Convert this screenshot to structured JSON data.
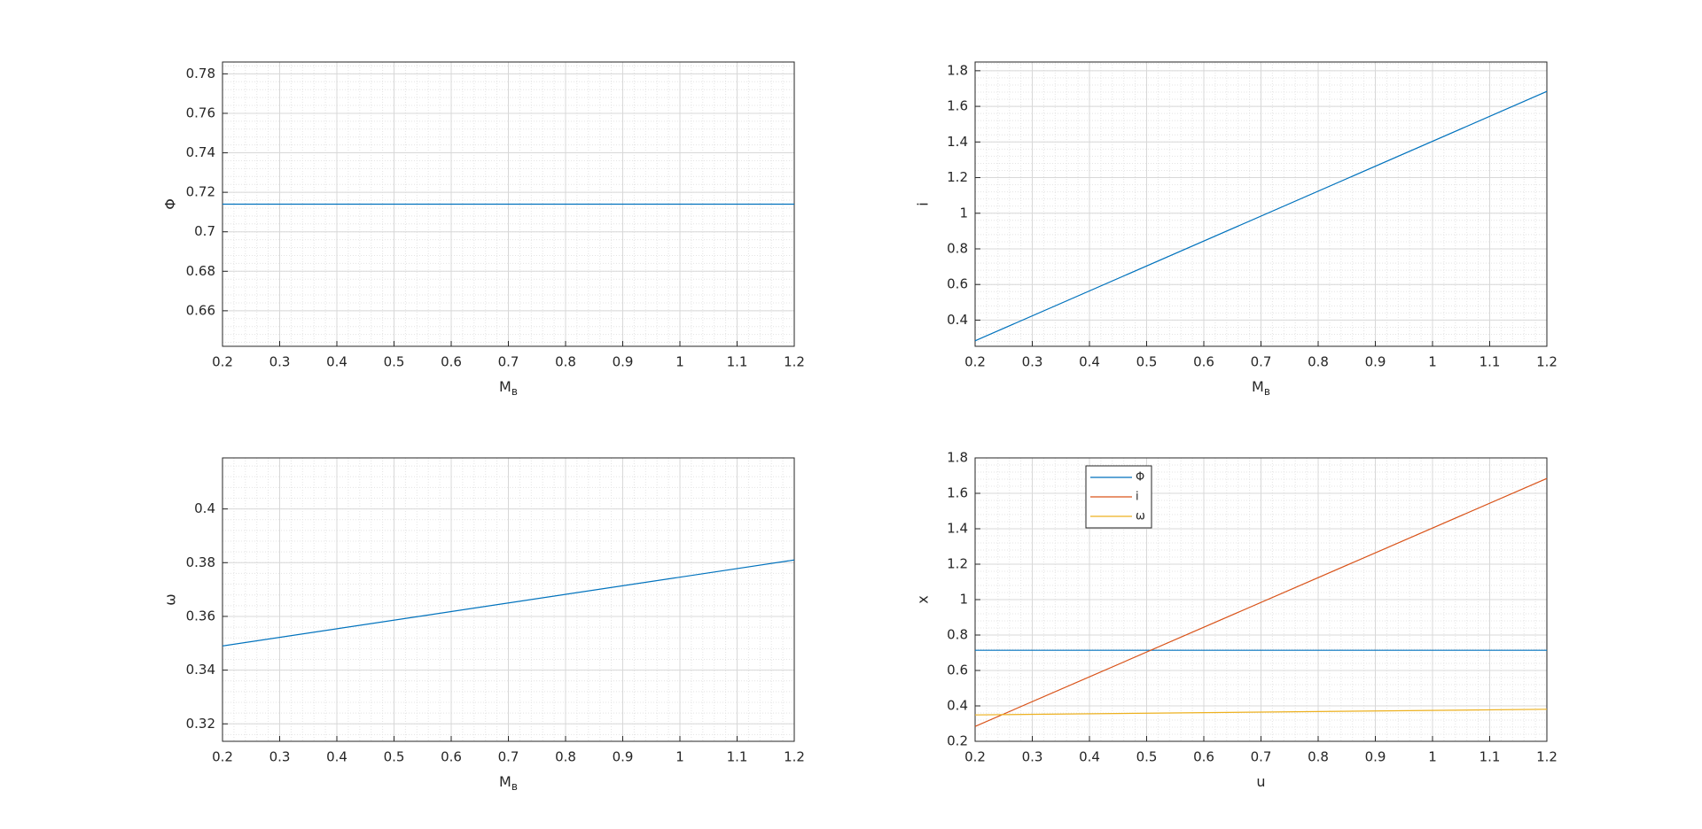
{
  "chart_data": [
    {
      "type": "line",
      "ylabel": "Φ",
      "xlabel": "M",
      "xlabel_subscript": "в",
      "x": [
        0.2,
        1.2
      ],
      "series": [
        {
          "name": "Φ",
          "color": "#0072bd",
          "values": [
            0.714,
            0.714
          ]
        }
      ],
      "xlim": [
        0.2,
        1.2
      ],
      "xticks": [
        0.2,
        0.3,
        0.4,
        0.5,
        0.6,
        0.7,
        0.8,
        0.9,
        1,
        1.1,
        1.2
      ],
      "ylim": [
        0.642,
        0.786
      ],
      "yticks": [
        0.66,
        0.68,
        0.7,
        0.72,
        0.74,
        0.76,
        0.78
      ],
      "grid": true,
      "minor_grid": true
    },
    {
      "type": "line",
      "ylabel": "i",
      "xlabel": "M",
      "xlabel_subscript": "в",
      "x": [
        0.2,
        1.2
      ],
      "series": [
        {
          "name": "i",
          "color": "#0072bd",
          "values": [
            0.284,
            1.684
          ]
        }
      ],
      "xlim": [
        0.2,
        1.2
      ],
      "xticks": [
        0.2,
        0.3,
        0.4,
        0.5,
        0.6,
        0.7,
        0.8,
        0.9,
        1,
        1.1,
        1.2
      ],
      "ylim": [
        0.253,
        1.849
      ],
      "yticks": [
        0.4,
        0.6,
        0.8,
        1,
        1.2,
        1.4,
        1.6,
        1.8
      ],
      "grid": true,
      "minor_grid": true
    },
    {
      "type": "line",
      "ylabel": "ω",
      "xlabel": "M",
      "xlabel_subscript": "в",
      "x": [
        0.2,
        1.2
      ],
      "series": [
        {
          "name": "ω",
          "color": "#0072bd",
          "values": [
            0.349,
            0.381
          ]
        }
      ],
      "xlim": [
        0.2,
        1.2
      ],
      "xticks": [
        0.2,
        0.3,
        0.4,
        0.5,
        0.6,
        0.7,
        0.8,
        0.9,
        1,
        1.1,
        1.2
      ],
      "ylim": [
        0.3135,
        0.419
      ],
      "yticks": [
        0.32,
        0.34,
        0.36,
        0.38,
        0.4
      ],
      "grid": true,
      "minor_grid": true
    },
    {
      "type": "line",
      "ylabel": "x",
      "xlabel": "u",
      "x": [
        0.2,
        1.2
      ],
      "series": [
        {
          "name": "Φ",
          "color": "#0072bd",
          "values": [
            0.714,
            0.714
          ]
        },
        {
          "name": "i",
          "color": "#d95319",
          "values": [
            0.284,
            1.684
          ]
        },
        {
          "name": "ω",
          "color": "#edb120",
          "values": [
            0.349,
            0.381
          ]
        }
      ],
      "xlim": [
        0.2,
        1.2
      ],
      "xticks": [
        0.2,
        0.3,
        0.4,
        0.5,
        0.6,
        0.7,
        0.8,
        0.9,
        1,
        1.1,
        1.2
      ],
      "ylim": [
        0.2,
        1.8
      ],
      "yticks": [
        0.2,
        0.4,
        0.6,
        0.8,
        1,
        1.2,
        1.4,
        1.6,
        1.8
      ],
      "grid": true,
      "minor_grid": true,
      "legend": "northwest"
    }
  ]
}
